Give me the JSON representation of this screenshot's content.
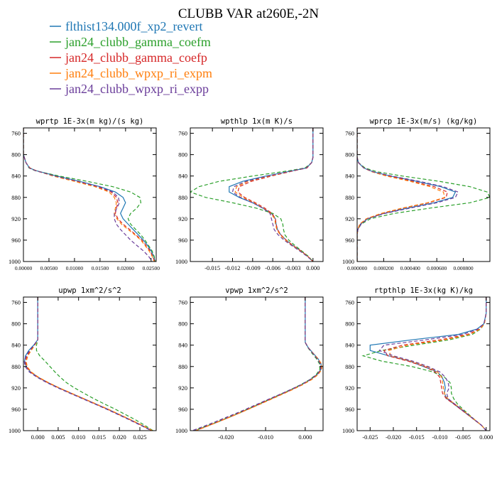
{
  "figure": {
    "title": "CLUBB VAR at260E,-2N"
  },
  "legend": {
    "entries": [
      {
        "label": "flthist134.000f_xp2_revert",
        "color": "#1f77b4",
        "dash": "solid"
      },
      {
        "label": "jan24_clubb_gamma_coefm",
        "color": "#2ca02c",
        "dash": "dash"
      },
      {
        "label": "jan24_clubb_gamma_coefp",
        "color": "#d62728",
        "dash": "dash"
      },
      {
        "label": "jan24_clubb_wpxp_ri_expm",
        "color": "#ff7f0e",
        "dash": "dash"
      },
      {
        "label": "jan24_clubb_wpxp_ri_expp",
        "color": "#6a3d9a",
        "dash": "dash"
      }
    ]
  },
  "chart_data": [
    {
      "type": "line",
      "title": "wprtp  1E-3x(m kg)/(s kg)",
      "ylim": [
        1000,
        750
      ],
      "yticks": [
        760,
        800,
        840,
        880,
        920,
        960,
        1000
      ],
      "xlim": [
        0.0,
        0.026
      ],
      "xticks": [
        0.0,
        0.005,
        0.01,
        0.015,
        0.02,
        0.025
      ],
      "xticklabels": [
        "0.00000",
        "0.00500",
        "0.01000",
        "0.01500",
        "0.02000",
        "0.02500"
      ],
      "y": [
        750,
        800,
        815,
        825,
        830,
        840,
        850,
        860,
        870,
        880,
        890,
        900,
        910,
        920,
        930,
        940,
        950,
        960,
        970,
        980,
        990,
        1000
      ],
      "series": [
        {
          "values": [
            0,
            0,
            0.0005,
            0.0012,
            0.0025,
            0.0065,
            0.011,
            0.015,
            0.018,
            0.0195,
            0.02,
            0.0195,
            0.019,
            0.0195,
            0.0205,
            0.0215,
            0.0225,
            0.0235,
            0.0243,
            0.025,
            0.0255,
            0.0258
          ]
        },
        {
          "values": [
            0,
            0,
            0.0005,
            0.0011,
            0.0023,
            0.007,
            0.0125,
            0.0175,
            0.021,
            0.0228,
            0.023,
            0.0222,
            0.021,
            0.0205,
            0.021,
            0.022,
            0.023,
            0.0238,
            0.0245,
            0.0252,
            0.0256,
            0.0258
          ]
        },
        {
          "values": [
            0,
            0,
            0.0005,
            0.0012,
            0.0024,
            0.006,
            0.0105,
            0.0145,
            0.0172,
            0.0182,
            0.0185,
            0.0182,
            0.018,
            0.0185,
            0.0195,
            0.0208,
            0.022,
            0.0232,
            0.024,
            0.0248,
            0.0253,
            0.0257
          ]
        },
        {
          "values": [
            0,
            0,
            0.0005,
            0.0013,
            0.0025,
            0.0058,
            0.01,
            0.014,
            0.0168,
            0.0178,
            0.0182,
            0.018,
            0.0178,
            0.0183,
            0.0192,
            0.0205,
            0.0218,
            0.023,
            0.0238,
            0.0246,
            0.0252,
            0.0256
          ]
        },
        {
          "values": [
            0,
            0,
            0.0005,
            0.0012,
            0.0024,
            0.0062,
            0.0108,
            0.0148,
            0.0175,
            0.0186,
            0.0188,
            0.0183,
            0.0178,
            0.0178,
            0.0182,
            0.019,
            0.02,
            0.021,
            0.0222,
            0.0235,
            0.0245,
            0.0252
          ]
        }
      ]
    },
    {
      "type": "line",
      "title": "wpthlp  1x(m K)/s",
      "ylim": [
        1000,
        750
      ],
      "yticks": [
        760,
        800,
        840,
        880,
        920,
        960,
        1000
      ],
      "xlim": [
        -0.0183,
        0.0015
      ],
      "xticks": [
        -0.015,
        -0.012,
        -0.009,
        -0.006,
        -0.003,
        0.0
      ],
      "xticklabels": [
        "-0.015",
        "-0.012",
        "-0.009",
        "-0.006",
        "-0.003",
        "0.000"
      ],
      "y": [
        750,
        805,
        815,
        825,
        830,
        840,
        850,
        860,
        870,
        880,
        890,
        900,
        910,
        920,
        930,
        940,
        950,
        960,
        970,
        980,
        990,
        1000
      ],
      "series": [
        {
          "values": [
            0,
            0,
            -0.0002,
            -0.001,
            -0.003,
            -0.007,
            -0.0105,
            -0.0125,
            -0.0125,
            -0.011,
            -0.009,
            -0.0075,
            -0.0062,
            -0.0056,
            -0.0055,
            -0.0053,
            -0.0048,
            -0.004,
            -0.003,
            -0.0018,
            -0.0008,
            0.0
          ]
        },
        {
          "values": [
            0,
            0,
            -0.0002,
            -0.0012,
            -0.0035,
            -0.009,
            -0.014,
            -0.017,
            -0.0183,
            -0.016,
            -0.012,
            -0.0085,
            -0.006,
            -0.0048,
            -0.0045,
            -0.0044,
            -0.0042,
            -0.0036,
            -0.0027,
            -0.0017,
            -0.0007,
            0.0
          ]
        },
        {
          "values": [
            0,
            0,
            -0.0002,
            -0.0009,
            -0.0028,
            -0.0062,
            -0.0092,
            -0.011,
            -0.0112,
            -0.0102,
            -0.0086,
            -0.0072,
            -0.0061,
            -0.0056,
            -0.0055,
            -0.0053,
            -0.0048,
            -0.004,
            -0.003,
            -0.0018,
            -0.0008,
            0.0
          ]
        },
        {
          "values": [
            0,
            0,
            -0.0002,
            -0.001,
            -0.0029,
            -0.0065,
            -0.0097,
            -0.0114,
            -0.0116,
            -0.0104,
            -0.0088,
            -0.0074,
            -0.0063,
            -0.0057,
            -0.0056,
            -0.0054,
            -0.0049,
            -0.0041,
            -0.0031,
            -0.0019,
            -0.0008,
            0.0
          ]
        },
        {
          "values": [
            0,
            0,
            -0.0002,
            -0.001,
            -0.003,
            -0.0068,
            -0.01,
            -0.0118,
            -0.012,
            -0.0108,
            -0.009,
            -0.0075,
            -0.0064,
            -0.0062,
            -0.006,
            -0.0058,
            -0.0052,
            -0.0043,
            -0.0032,
            -0.002,
            -0.0009,
            0.0
          ]
        }
      ]
    },
    {
      "type": "line",
      "title": "wprcp  1E-3x(m/s) (kg/kg)",
      "ylim": [
        1000,
        750
      ],
      "yticks": [
        760,
        800,
        840,
        880,
        920,
        960,
        1000
      ],
      "xlim": [
        0.0,
        0.001
      ],
      "xticks": [
        0.0,
        0.0002,
        0.0004,
        0.0006,
        0.0008
      ],
      "xticklabels": [
        "0.000000",
        "0.000200",
        "0.000400",
        "0.000600",
        "0.000800"
      ],
      "y": [
        750,
        805,
        815,
        825,
        832,
        840,
        850,
        860,
        870,
        880,
        890,
        900,
        910,
        920,
        930,
        940,
        950,
        960,
        1000
      ],
      "series": [
        {
          "values": [
            0,
            0,
            1e-05,
            5e-05,
            0.00012,
            0.00025,
            0.00045,
            0.00063,
            0.00074,
            0.00072,
            0.00058,
            0.00038,
            0.0002,
            8e-05,
            2.5e-05,
            5e-06,
            0.0,
            0.0,
            0.0
          ]
        },
        {
          "values": [
            0,
            0,
            1e-05,
            6e-05,
            0.00015,
            0.00034,
            0.00062,
            0.00085,
            0.00098,
            0.001,
            0.00085,
            0.00055,
            0.00028,
            0.0001,
            3e-05,
            6e-06,
            0.0,
            0.0,
            0.0
          ]
        },
        {
          "values": [
            0,
            0,
            1e-05,
            5e-05,
            0.00012,
            0.00024,
            0.00042,
            0.00058,
            0.00068,
            0.00067,
            0.00054,
            0.00035,
            0.00019,
            7e-05,
            2e-05,
            5e-06,
            0.0,
            0.0,
            0.0
          ]
        },
        {
          "values": [
            0,
            0,
            1e-05,
            5e-05,
            0.00011,
            0.00022,
            0.0004,
            0.00055,
            0.00065,
            0.00066,
            0.00053,
            0.00034,
            0.00018,
            7e-05,
            2e-05,
            5e-06,
            0.0,
            0.0,
            0.0
          ]
        },
        {
          "values": [
            0,
            0,
            1e-05,
            5e-05,
            0.00012,
            0.00026,
            0.00047,
            0.00065,
            0.00076,
            0.00074,
            0.0006,
            0.0004,
            0.00021,
            8e-05,
            3e-05,
            6e-06,
            0.0,
            0.0,
            0.0
          ]
        }
      ]
    },
    {
      "type": "line",
      "title": "upwp   1xm^2/s^2",
      "ylim": [
        1000,
        750
      ],
      "yticks": [
        760,
        800,
        840,
        880,
        920,
        960,
        1000
      ],
      "xlim": [
        -0.0035,
        0.029
      ],
      "xticks": [
        0.0,
        0.005,
        0.01,
        0.015,
        0.02,
        0.025
      ],
      "xticklabels": [
        "0.000",
        "0.005",
        "0.010",
        "0.015",
        "0.020",
        "0.025"
      ],
      "y": [
        750,
        830,
        840,
        850,
        860,
        870,
        880,
        890,
        900,
        910,
        920,
        930,
        940,
        950,
        960,
        970,
        980,
        990,
        1000
      ],
      "series": [
        {
          "values": [
            0,
            0,
            -0.001,
            -0.0022,
            -0.003,
            -0.0032,
            -0.0028,
            -0.0018,
            0.0001,
            0.0025,
            0.0052,
            0.0082,
            0.0112,
            0.0142,
            0.0172,
            0.02,
            0.0228,
            0.0255,
            0.028
          ]
        },
        {
          "values": [
            0,
            0,
            -0.0003,
            -0.0003,
            0.0005,
            0.0018,
            0.003,
            0.0042,
            0.0055,
            0.007,
            0.009,
            0.0113,
            0.0137,
            0.0163,
            0.019,
            0.0215,
            0.024,
            0.0262,
            0.0282
          ]
        },
        {
          "values": [
            0,
            0,
            -0.0008,
            -0.0018,
            -0.0026,
            -0.003,
            -0.0028,
            -0.0018,
            0.0,
            0.0024,
            0.0051,
            0.0081,
            0.0111,
            0.0141,
            0.0171,
            0.0199,
            0.0227,
            0.0254,
            0.0279
          ]
        },
        {
          "values": [
            0,
            0,
            -0.0007,
            -0.0016,
            -0.0024,
            -0.0028,
            -0.0026,
            -0.0016,
            0.0002,
            0.0026,
            0.0053,
            0.0083,
            0.0113,
            0.0143,
            0.0173,
            0.0201,
            0.0229,
            0.0256,
            0.0281
          ]
        },
        {
          "values": [
            0,
            0,
            -0.0009,
            -0.002,
            -0.0028,
            -0.0033,
            -0.0031,
            -0.0021,
            -0.0002,
            0.0022,
            0.0049,
            0.0079,
            0.0109,
            0.0139,
            0.0169,
            0.0197,
            0.0225,
            0.0252,
            0.0278
          ]
        }
      ]
    },
    {
      "type": "line",
      "title": "vpwp   1xm^2/s^2",
      "ylim": [
        1000,
        750
      ],
      "yticks": [
        760,
        800,
        840,
        880,
        920,
        960,
        1000
      ],
      "xlim": [
        -0.029,
        0.0045
      ],
      "xticks": [
        -0.02,
        -0.01,
        0.0
      ],
      "xticklabels": [
        "-0.020",
        "-0.010",
        "0.000"
      ],
      "y": [
        750,
        835,
        845,
        855,
        865,
        875,
        885,
        895,
        905,
        915,
        925,
        935,
        945,
        955,
        965,
        975,
        985,
        995,
        1000
      ],
      "series": [
        {
          "values": [
            0,
            0,
            0.0008,
            0.002,
            0.0032,
            0.004,
            0.004,
            0.003,
            0.0012,
            -0.0012,
            -0.004,
            -0.007,
            -0.01,
            -0.013,
            -0.016,
            -0.0192,
            -0.0225,
            -0.026,
            -0.0278
          ]
        },
        {
          "values": [
            0,
            0,
            0.0007,
            0.0017,
            0.0028,
            0.0036,
            0.0037,
            0.0028,
            0.001,
            -0.0014,
            -0.0042,
            -0.0072,
            -0.0102,
            -0.0132,
            -0.0162,
            -0.0194,
            -0.0227,
            -0.0262,
            -0.028
          ]
        },
        {
          "values": [
            0,
            0,
            0.0008,
            0.0019,
            0.0031,
            0.0039,
            0.004,
            0.0031,
            0.0013,
            -0.0011,
            -0.0039,
            -0.0069,
            -0.0099,
            -0.0129,
            -0.016,
            -0.0192,
            -0.0225,
            -0.0259,
            -0.0277
          ]
        },
        {
          "values": [
            0,
            0,
            0.0008,
            0.002,
            0.0032,
            0.0041,
            0.0042,
            0.0033,
            0.0015,
            -0.0009,
            -0.0037,
            -0.0067,
            -0.0097,
            -0.0128,
            -0.0159,
            -0.0191,
            -0.0224,
            -0.0258,
            -0.0276
          ]
        },
        {
          "values": [
            0,
            0,
            0.0008,
            0.0019,
            0.003,
            0.0038,
            0.0039,
            0.003,
            0.0011,
            -0.0013,
            -0.0042,
            -0.0073,
            -0.0104,
            -0.0135,
            -0.0166,
            -0.0199,
            -0.0232,
            -0.0267,
            -0.0285
          ]
        }
      ]
    },
    {
      "type": "line",
      "title": "rtpthlp  1E-3x(kg K)/kg",
      "ylim": [
        1000,
        750
      ],
      "yticks": [
        760,
        800,
        840,
        880,
        920,
        960,
        1000
      ],
      "xlim": [
        -0.0278,
        0.0008
      ],
      "xticks": [
        -0.025,
        -0.02,
        -0.015,
        -0.01,
        -0.005,
        0.0
      ],
      "xticklabels": [
        "-0.025",
        "-0.020",
        "-0.015",
        "-0.010",
        "-0.005",
        "0.000"
      ],
      "y": [
        750,
        780,
        800,
        810,
        820,
        830,
        840,
        850,
        860,
        870,
        880,
        890,
        900,
        910,
        920,
        930,
        940,
        950,
        960,
        970,
        980,
        990,
        1000
      ],
      "series": [
        {
          "values": [
            0,
            0,
            -0.0005,
            -0.002,
            -0.006,
            -0.016,
            -0.025,
            -0.025,
            -0.021,
            -0.0165,
            -0.0135,
            -0.0105,
            -0.0095,
            -0.009,
            -0.0088,
            -0.009,
            -0.0085,
            -0.007,
            -0.0055,
            -0.004,
            -0.0025,
            -0.001,
            0.0
          ]
        },
        {
          "values": [
            0,
            0,
            -0.0004,
            -0.0012,
            -0.003,
            -0.008,
            -0.0155,
            -0.0225,
            -0.0265,
            -0.0225,
            -0.016,
            -0.0115,
            -0.009,
            -0.0078,
            -0.0075,
            -0.0075,
            -0.007,
            -0.0062,
            -0.005,
            -0.0037,
            -0.0024,
            -0.001,
            0.0
          ]
        },
        {
          "values": [
            0,
            0,
            -0.0004,
            -0.0014,
            -0.004,
            -0.01,
            -0.018,
            -0.022,
            -0.0212,
            -0.0168,
            -0.0133,
            -0.011,
            -0.01,
            -0.0098,
            -0.0096,
            -0.0094,
            -0.0086,
            -0.007,
            -0.0055,
            -0.004,
            -0.0025,
            -0.001,
            0.0
          ]
        },
        {
          "values": [
            0,
            0,
            -0.0004,
            -0.0013,
            -0.0035,
            -0.009,
            -0.017,
            -0.021,
            -0.0205,
            -0.0162,
            -0.0128,
            -0.0105,
            -0.0096,
            -0.0094,
            -0.0092,
            -0.009,
            -0.0083,
            -0.0068,
            -0.0053,
            -0.0039,
            -0.0024,
            -0.001,
            0.0
          ]
        },
        {
          "values": [
            0,
            0,
            -0.0005,
            -0.0018,
            -0.005,
            -0.013,
            -0.022,
            -0.023,
            -0.02,
            -0.0158,
            -0.0125,
            -0.01,
            -0.0088,
            -0.0082,
            -0.008,
            -0.0085,
            -0.0082,
            -0.0068,
            -0.0053,
            -0.0039,
            -0.0024,
            -0.001,
            0.0
          ]
        }
      ]
    }
  ]
}
